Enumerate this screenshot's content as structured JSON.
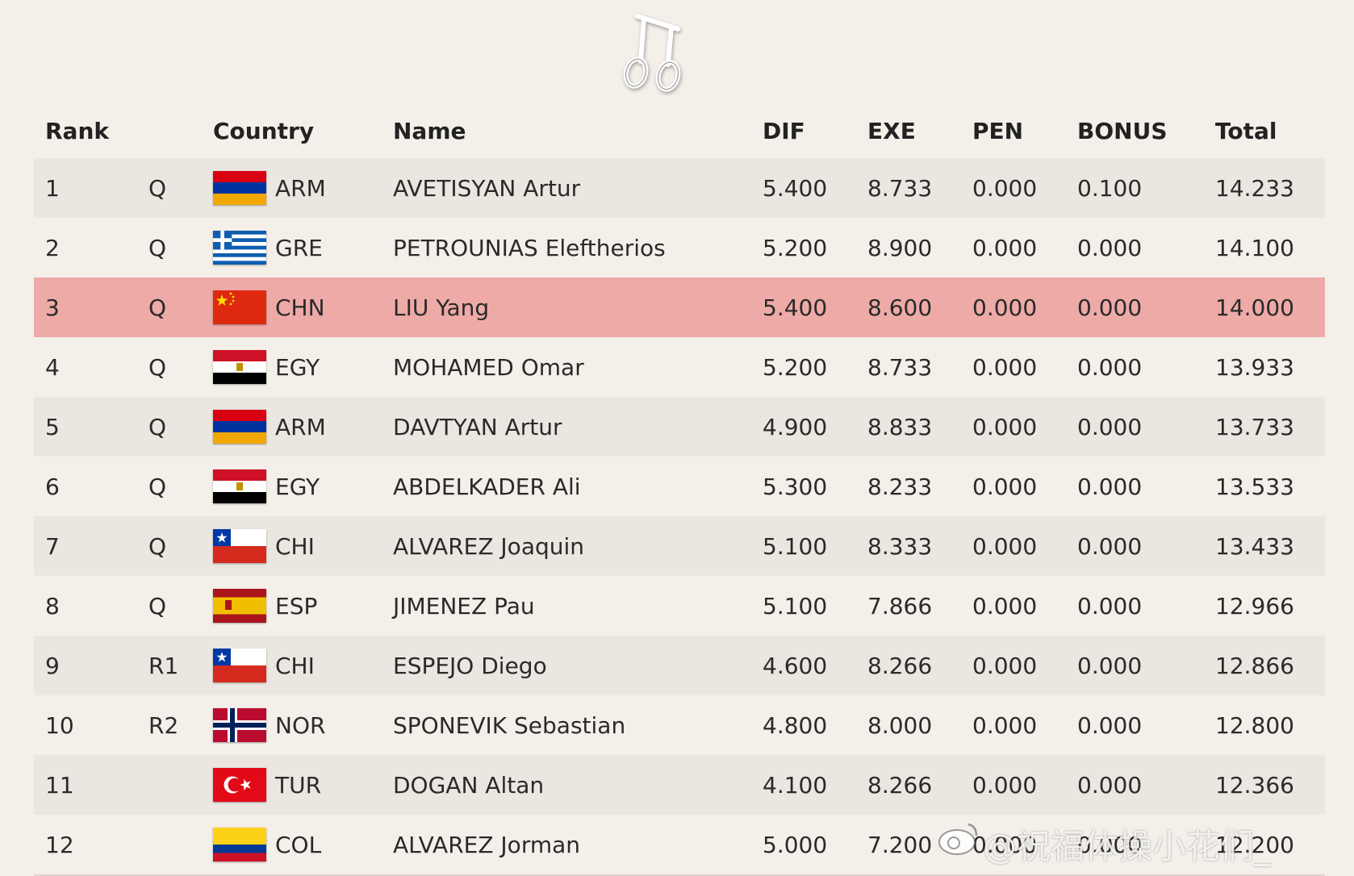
{
  "columns": {
    "rank": "Rank",
    "country": "Country",
    "name": "Name",
    "dif": "DIF",
    "exe": "EXE",
    "pen": "PEN",
    "bonus": "BONUS",
    "total": "Total"
  },
  "rows": [
    {
      "rank": "1",
      "q": "Q",
      "flag": "armenia-flag",
      "code": "ARM",
      "name": "AVETISYAN Artur",
      "dif": "5.400",
      "exe": "8.733",
      "pen": "0.000",
      "bonus": "0.100",
      "total": "14.233"
    },
    {
      "rank": "2",
      "q": "Q",
      "flag": "greece-flag",
      "code": "GRE",
      "name": "PETROUNIAS Eleftherios",
      "dif": "5.200",
      "exe": "8.900",
      "pen": "0.000",
      "bonus": "0.000",
      "total": "14.100"
    },
    {
      "rank": "3",
      "q": "Q",
      "flag": "china-flag",
      "code": "CHN",
      "name": "LIU Yang",
      "dif": "5.400",
      "exe": "8.600",
      "pen": "0.000",
      "bonus": "0.000",
      "total": "14.000",
      "highlighted": true
    },
    {
      "rank": "4",
      "q": "Q",
      "flag": "egypt-flag",
      "code": "EGY",
      "name": "MOHAMED Omar",
      "dif": "5.200",
      "exe": "8.733",
      "pen": "0.000",
      "bonus": "0.000",
      "total": "13.933"
    },
    {
      "rank": "5",
      "q": "Q",
      "flag": "armenia-flag",
      "code": "ARM",
      "name": "DAVTYAN Artur",
      "dif": "4.900",
      "exe": "8.833",
      "pen": "0.000",
      "bonus": "0.000",
      "total": "13.733"
    },
    {
      "rank": "6",
      "q": "Q",
      "flag": "egypt-flag",
      "code": "EGY",
      "name": "ABDELKADER Ali",
      "dif": "5.300",
      "exe": "8.233",
      "pen": "0.000",
      "bonus": "0.000",
      "total": "13.533"
    },
    {
      "rank": "7",
      "q": "Q",
      "flag": "chile-flag",
      "code": "CHI",
      "name": "ALVAREZ Joaquin",
      "dif": "5.100",
      "exe": "8.333",
      "pen": "0.000",
      "bonus": "0.000",
      "total": "13.433"
    },
    {
      "rank": "8",
      "q": "Q",
      "flag": "spain-flag",
      "code": "ESP",
      "name": "JIMENEZ Pau",
      "dif": "5.100",
      "exe": "7.866",
      "pen": "0.000",
      "bonus": "0.000",
      "total": "12.966"
    },
    {
      "rank": "9",
      "q": "R1",
      "flag": "chile-flag",
      "code": "CHI",
      "name": "ESPEJO Diego",
      "dif": "4.600",
      "exe": "8.266",
      "pen": "0.000",
      "bonus": "0.000",
      "total": "12.866"
    },
    {
      "rank": "10",
      "q": "R2",
      "flag": "norway-flag",
      "code": "NOR",
      "name": "SPONEVIK Sebastian",
      "dif": "4.800",
      "exe": "8.000",
      "pen": "0.000",
      "bonus": "0.000",
      "total": "12.800"
    },
    {
      "rank": "11",
      "q": "",
      "flag": "turkey-flag",
      "code": "TUR",
      "name": "DOGAN Altan",
      "dif": "4.100",
      "exe": "8.266",
      "pen": "0.000",
      "bonus": "0.000",
      "total": "12.366"
    },
    {
      "rank": "12",
      "q": "",
      "flag": "colombia-flag",
      "code": "COL",
      "name": "ALVAREZ Jorman",
      "dif": "5.000",
      "exe": "7.200",
      "pen": "0.000",
      "bonus": "0.000",
      "total": "12.200"
    }
  ],
  "icons": {
    "apparatus": "rings-icon",
    "watermark": "weibo-icon"
  },
  "colors": {
    "background": "#f4efe9",
    "row_shade": "#ebe6e0",
    "highlight": "#eeaaa7"
  },
  "watermark": {
    "text": "@祝福体操小花们_"
  }
}
